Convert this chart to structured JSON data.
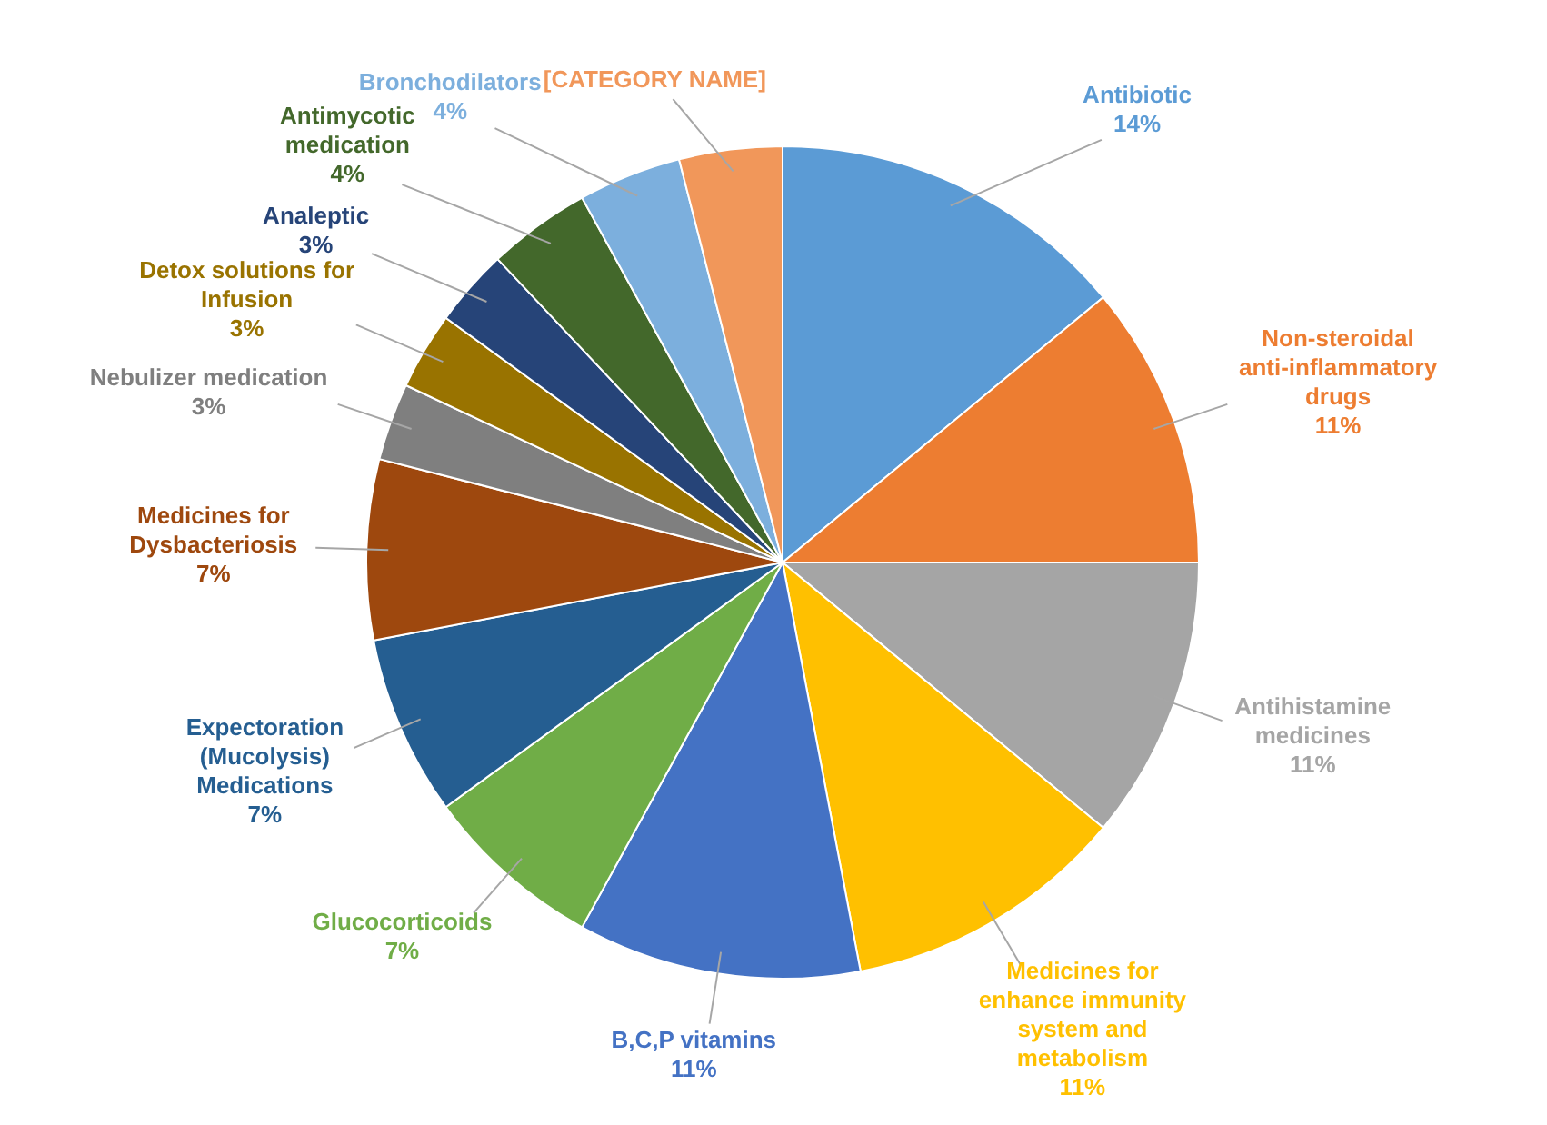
{
  "chart_data": {
    "type": "pie",
    "legend": false,
    "categories": [
      "Antibiotic",
      "Non-steroidal anti-inflammatory drugs",
      "Antihistamine medicines",
      "Medicines for enhance immunity system and metabolism",
      "B,C,P vitamins",
      "Glucocorticoids",
      "Expectoration (Mucolysis) Medications",
      "Medicines for Dysbacteriosis",
      "Nebulizer medication",
      "Detox solutions for Infusion",
      "Analeptic",
      "Antimycotic medication",
      "Bronchodilators",
      "[CATEGORY NAME]"
    ],
    "values": [
      14,
      11,
      11,
      11,
      11,
      7,
      7,
      7,
      3,
      3,
      3,
      4,
      4,
      4
    ],
    "value_labels": [
      "14%",
      "11%",
      "11%",
      "11%",
      "11%",
      "7%",
      "7%",
      "7%",
      "3%",
      "3%",
      "3%",
      "4%",
      "4%",
      null
    ],
    "colors": [
      "#5b9bd5",
      "#ed7d31",
      "#a5a5a5",
      "#ffc000",
      "#4472c4",
      "#70ad47",
      "#255e91",
      "#9e480e",
      "#7f7f7f",
      "#997300",
      "#264478",
      "#43682b",
      "#7cafdd",
      "#f1975a"
    ]
  }
}
